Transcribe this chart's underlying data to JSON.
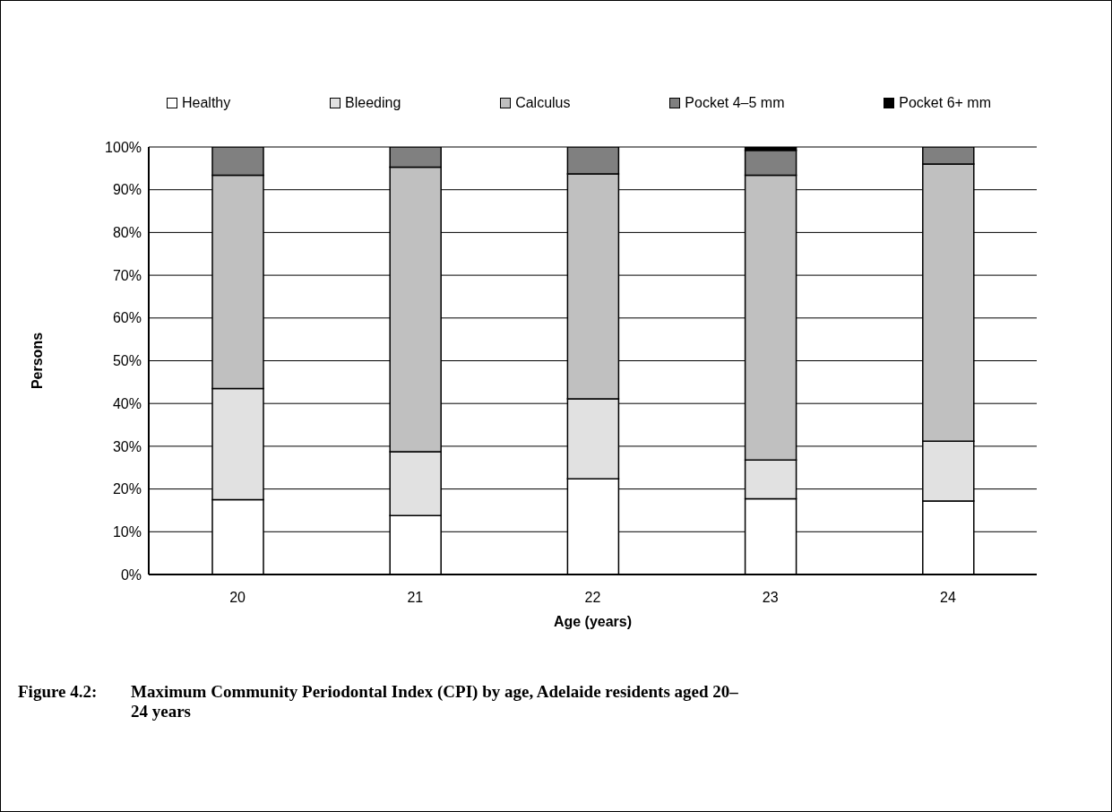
{
  "chart_data": {
    "type": "bar",
    "title": "Figure 4.2:\tMaximum Community Periodontal Index (CPI) by age, Adelaide residents aged 20–24 years",
    "xlabel": "Age (years)",
    "ylabel": "Persons",
    "categories": [
      "20",
      "21",
      "22",
      "23",
      "24"
    ],
    "series": [
      {
        "name": "Healthy",
        "color": "#ffffff",
        "values": [
          17.5,
          13.8,
          22.4,
          17.7,
          17.2
        ]
      },
      {
        "name": "Bleeding",
        "color": "#e1e1e1",
        "values": [
          26.0,
          14.9,
          18.7,
          9.1,
          14.0
        ]
      },
      {
        "name": "Calculus",
        "color": "#c0c0c0",
        "values": [
          49.9,
          66.6,
          52.6,
          66.6,
          64.8
        ]
      },
      {
        "name": "Pocket 4–5 mm",
        "color": "#808080",
        "values": [
          6.6,
          4.7,
          6.3,
          5.8,
          4.0
        ]
      },
      {
        "name": "Pocket 6+ mm",
        "color": "#000000",
        "values": [
          0,
          0,
          0,
          0.8,
          0
        ]
      }
    ],
    "stacked": true,
    "ylim": [
      0,
      100
    ],
    "yticks": [
      {
        "value": 0,
        "label": "0%"
      },
      {
        "value": 10,
        "label": "10%"
      },
      {
        "value": 20,
        "label": "20%"
      },
      {
        "value": 30,
        "label": "30%"
      },
      {
        "value": 40,
        "label": "40%"
      },
      {
        "value": 50,
        "label": "50%"
      },
      {
        "value": 60,
        "label": "60%"
      },
      {
        "value": 70,
        "label": "70%"
      },
      {
        "value": 80,
        "label": "80%"
      },
      {
        "value": 90,
        "label": "90%"
      },
      {
        "value": 100,
        "label": "100%"
      }
    ],
    "grid": "y",
    "legend": "top"
  }
}
